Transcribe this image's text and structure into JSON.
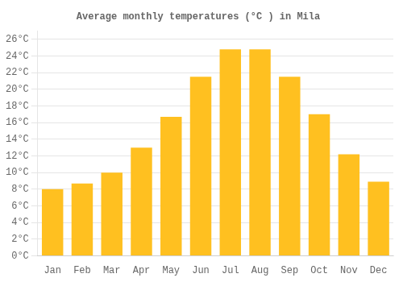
{
  "chart_data": {
    "type": "bar",
    "title": "Average monthly temperatures (°C ) in Mila",
    "categories": [
      "Jan",
      "Feb",
      "Mar",
      "Apr",
      "May",
      "Jun",
      "Jul",
      "Aug",
      "Sep",
      "Oct",
      "Nov",
      "Dec"
    ],
    "values": [
      8.0,
      8.7,
      10.0,
      13.0,
      16.7,
      21.5,
      24.8,
      24.8,
      21.5,
      17.0,
      12.2,
      8.9
    ],
    "color": "#FFC020",
    "ylim": [
      0,
      27
    ],
    "yticks": [
      {
        "value": 0,
        "label": "0°C"
      },
      {
        "value": 2,
        "label": "2°C"
      },
      {
        "value": 4,
        "label": "4°C"
      },
      {
        "value": 6,
        "label": "6°C"
      },
      {
        "value": 8,
        "label": "8°C"
      },
      {
        "value": 10,
        "label": "10°C"
      },
      {
        "value": 12,
        "label": "12°C"
      },
      {
        "value": 14,
        "label": "14°C"
      },
      {
        "value": 16,
        "label": "16°C"
      },
      {
        "value": 18,
        "label": "18°C"
      },
      {
        "value": 20,
        "label": "20°C"
      },
      {
        "value": 22,
        "label": "22°C"
      },
      {
        "value": 24,
        "label": "24°C"
      },
      {
        "value": 26,
        "label": "26°C"
      }
    ],
    "grid": true
  }
}
